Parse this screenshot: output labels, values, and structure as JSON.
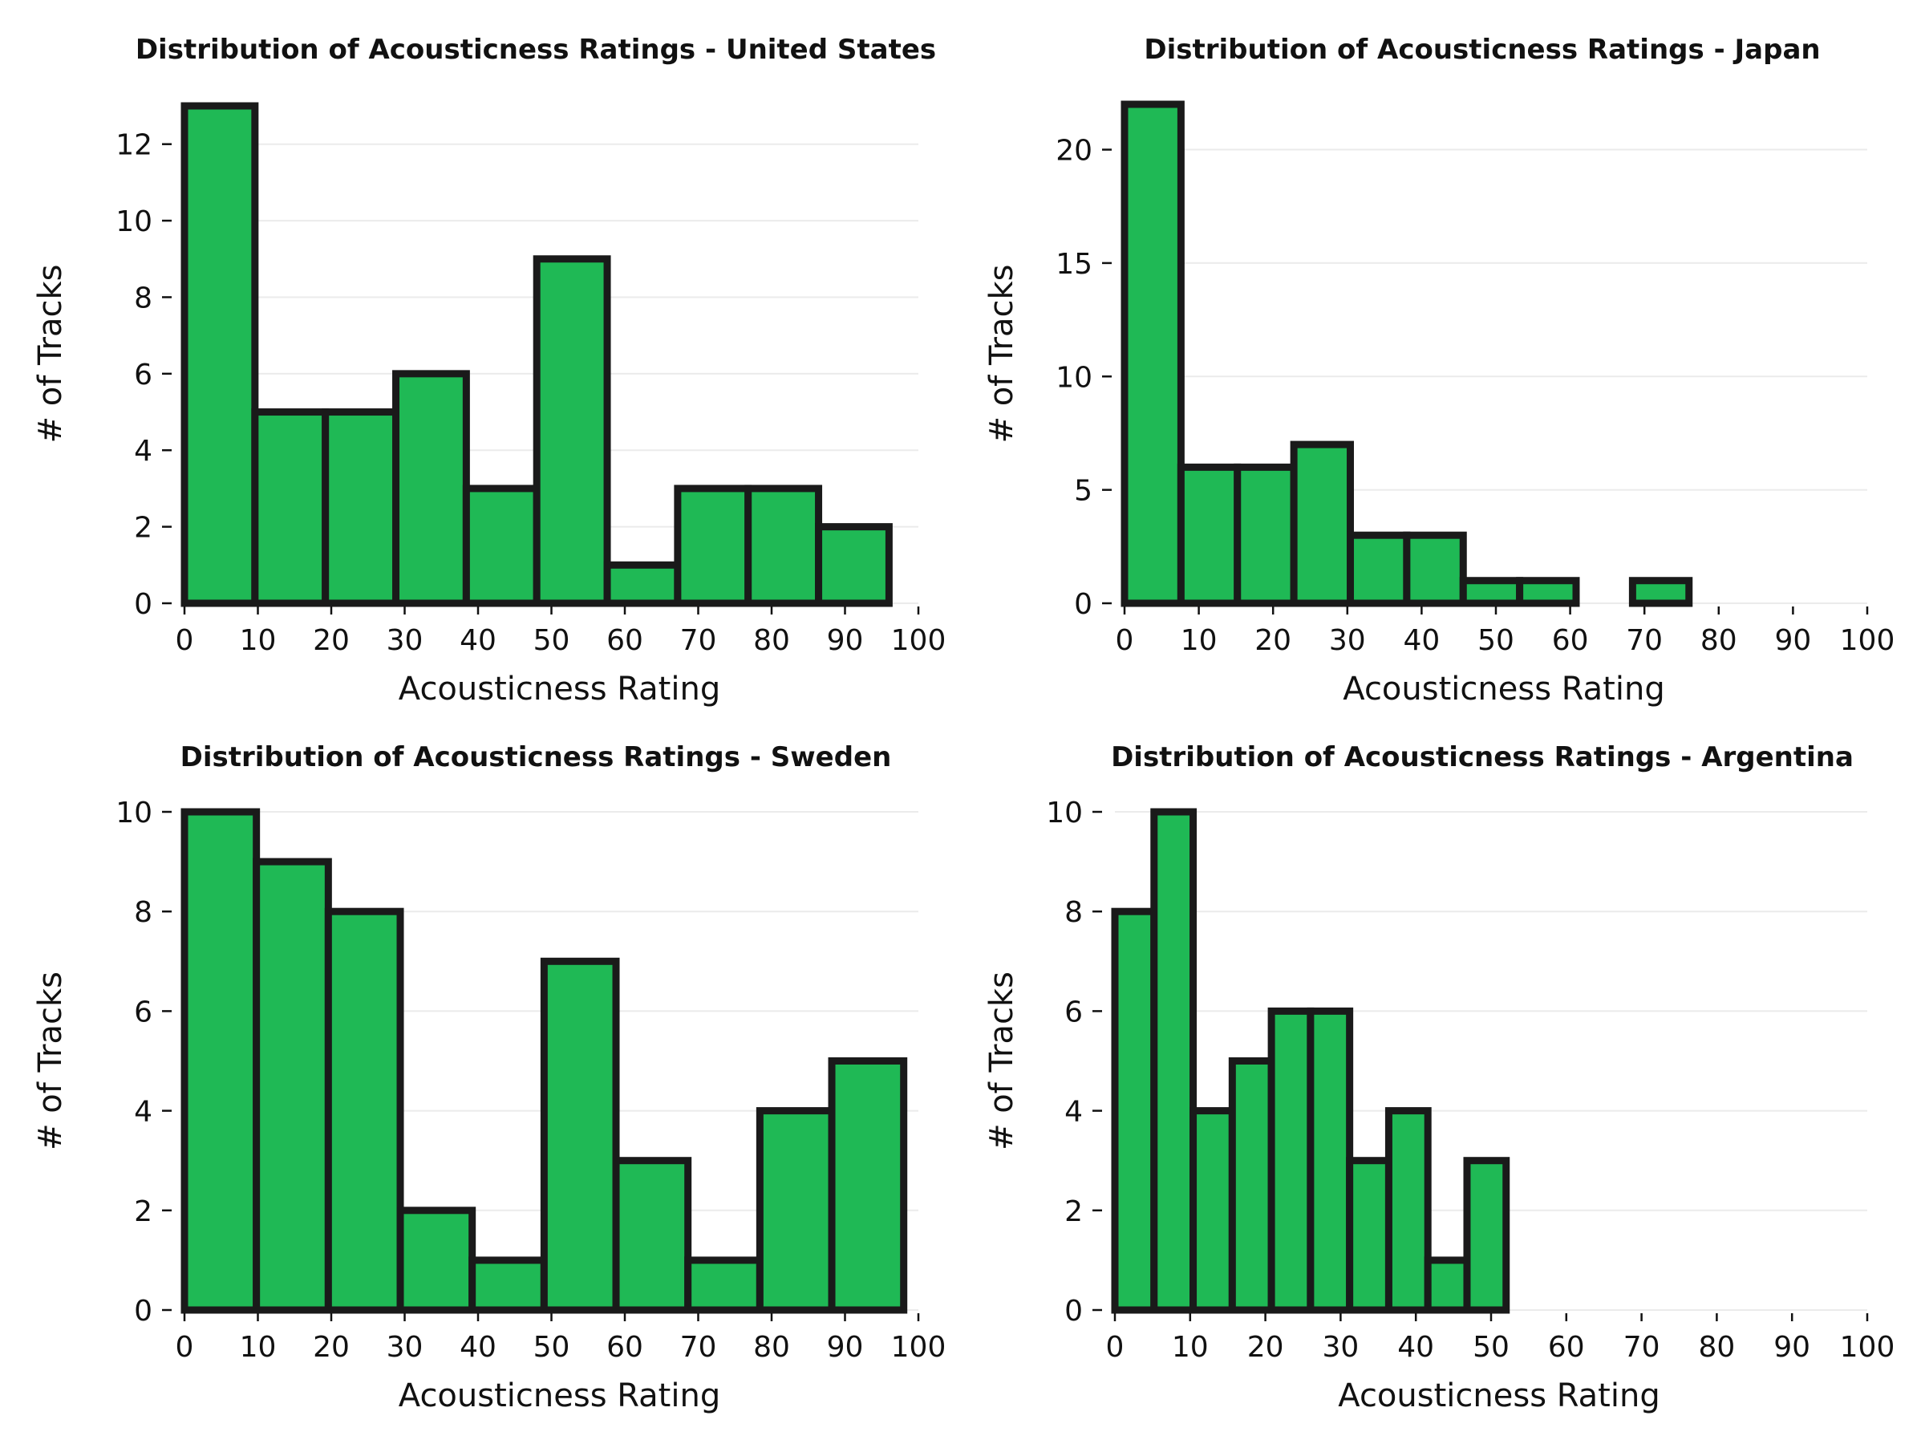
{
  "bar_color": "#1fb955",
  "edge_color": "#1a1a1a",
  "grid_color": "#ebebeb",
  "chart_data": [
    {
      "type": "bar",
      "title": "Distribution of Acousticness Ratings - United States",
      "xlabel": "Acousticness Rating",
      "ylabel": "# of Tracks",
      "xlim": [
        0,
        100
      ],
      "ylim": [
        0,
        13
      ],
      "xticks": [
        0,
        10,
        20,
        30,
        40,
        50,
        60,
        70,
        80,
        90,
        100
      ],
      "yticks": [
        0,
        2,
        4,
        6,
        8,
        10,
        12
      ],
      "grid": "y",
      "bin_edges": [
        0,
        9.6,
        19.2,
        28.8,
        38.4,
        48.0,
        57.6,
        67.2,
        76.8,
        86.4,
        96.0
      ],
      "values": [
        13,
        5,
        5,
        6,
        3,
        9,
        1,
        3,
        3,
        2
      ]
    },
    {
      "type": "bar",
      "title": "Distribution of Acousticness Ratings - Japan",
      "xlabel": "Acousticness Rating",
      "ylabel": "# of Tracks",
      "xlim": [
        0,
        100
      ],
      "ylim": [
        0,
        22
      ],
      "xticks": [
        0,
        10,
        20,
        30,
        40,
        50,
        60,
        70,
        80,
        90,
        100
      ],
      "yticks": [
        0,
        5,
        10,
        15,
        20
      ],
      "grid": "y",
      "bin_edges": [
        0,
        7.6,
        15.2,
        22.8,
        30.4,
        38.0,
        45.6,
        53.2,
        60.8,
        68.4,
        76.0
      ],
      "values": [
        22,
        6,
        6,
        7,
        3,
        3,
        1,
        1,
        0,
        1
      ]
    },
    {
      "type": "bar",
      "title": "Distribution of Acousticness Ratings - Sweden",
      "xlabel": "Acousticness Rating",
      "ylabel": "# of Tracks",
      "xlim": [
        0,
        100
      ],
      "ylim": [
        0,
        10
      ],
      "xticks": [
        0,
        10,
        20,
        30,
        40,
        50,
        60,
        70,
        80,
        90,
        100
      ],
      "yticks": [
        0,
        2,
        4,
        6,
        8,
        10
      ],
      "grid": "y",
      "bin_edges": [
        0,
        9.8,
        19.6,
        29.4,
        39.2,
        49.0,
        58.8,
        68.6,
        78.4,
        88.2,
        98.0
      ],
      "values": [
        10,
        9,
        8,
        2,
        1,
        7,
        3,
        1,
        4,
        5
      ]
    },
    {
      "type": "bar",
      "title": "Distribution of Acousticness Ratings - Argentina",
      "xlabel": "Acousticness Rating",
      "ylabel": "# of Tracks",
      "xlim": [
        0,
        100
      ],
      "ylim": [
        0,
        10
      ],
      "xticks": [
        0,
        10,
        20,
        30,
        40,
        50,
        60,
        70,
        80,
        90,
        100
      ],
      "yticks": [
        0,
        2,
        4,
        6,
        8,
        10
      ],
      "grid": "y",
      "bin_edges": [
        0,
        5.2,
        10.4,
        15.6,
        20.8,
        26.0,
        31.2,
        36.4,
        41.6,
        46.8,
        52.0
      ],
      "values": [
        8,
        10,
        4,
        5,
        6,
        6,
        3,
        4,
        1,
        3
      ]
    }
  ]
}
